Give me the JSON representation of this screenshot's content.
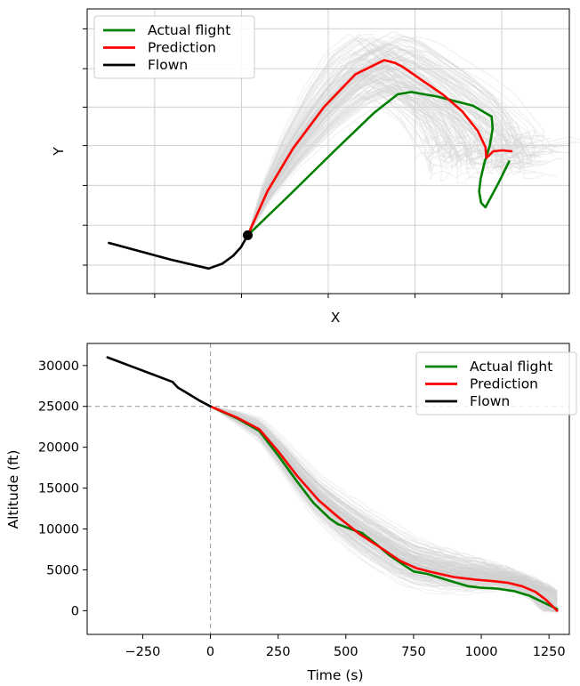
{
  "chart_data": [
    {
      "type": "line",
      "title": "",
      "xlabel": "X",
      "ylabel": "Y",
      "xlim": [
        0,
        100
      ],
      "ylim": [
        0,
        100
      ],
      "x_tick_labels": "none",
      "y_tick_labels": "none",
      "grid": true,
      "legend_placement": "top-left",
      "legend": [
        "Actual flight",
        "Prediction",
        "Flown"
      ],
      "series": [
        {
          "name": "Actual flight",
          "color": "#008000",
          "x": [
            33.3,
            42.2,
            51.2,
            59.5,
            64.4,
            67.2,
            72.7,
            80.0,
            83.9,
            84.1,
            83.5,
            82.4,
            81.6,
            81.3,
            81.7,
            82.6,
            85.2,
            87.5
          ],
          "y": [
            20.5,
            35.0,
            50.0,
            63.5,
            70.0,
            70.8,
            69.2,
            66.0,
            62.2,
            58.0,
            52.0,
            46.0,
            40.3,
            35.9,
            31.9,
            30.3,
            38.5,
            46.4
          ]
        },
        {
          "name": "Prediction",
          "color": "#ff0000",
          "x": [
            33.3,
            37.4,
            42.7,
            49.1,
            55.6,
            61.6,
            63.9,
            65.4,
            69.4,
            73.8,
            77.8,
            81.0,
            82.6,
            82.8,
            83.2,
            84.2,
            86.2,
            88.0
          ],
          "y": [
            20.5,
            36.0,
            51.0,
            65.5,
            77.0,
            82.0,
            81.0,
            79.7,
            75.0,
            69.9,
            64.0,
            57.2,
            51.5,
            47.7,
            48.3,
            50.0,
            50.3,
            50.0
          ]
        },
        {
          "name": "Flown",
          "color": "#000000",
          "x": [
            4.5,
            17.4,
            25.2,
            28.0,
            30.3,
            31.9,
            33.3
          ],
          "y": [
            17.8,
            11.9,
            8.8,
            10.5,
            13.3,
            16.3,
            20.5
          ]
        }
      ],
      "markers": [
        {
          "label": "current position",
          "x": 33.3,
          "y": 20.5,
          "color": "#000000"
        }
      ],
      "background_ensemble": "many grey simulated trajectories"
    },
    {
      "type": "line",
      "title": "",
      "xlabel": "Time (s)",
      "ylabel": "Altitude (ft)",
      "xlim": [
        -455,
        1325
      ],
      "ylim": [
        -2900,
        32700
      ],
      "x_ticks": [
        -250,
        0,
        250,
        500,
        750,
        1000,
        1250
      ],
      "y_ticks": [
        0,
        5000,
        10000,
        15000,
        20000,
        25000,
        30000
      ],
      "x_tick_labels": [
        "−250",
        "0",
        "250",
        "500",
        "750",
        "1000",
        "1250"
      ],
      "y_tick_labels": [
        "0",
        "5000",
        "10000",
        "15000",
        "20000",
        "25000",
        "30000"
      ],
      "grid": false,
      "legend_placement": "top-right",
      "legend": [
        "Actual flight",
        "Prediction",
        "Flown"
      ],
      "reference_lines": [
        {
          "orientation": "horizontal",
          "value": 25000,
          "style": "dashed",
          "color": "#a0a0a0"
        },
        {
          "orientation": "vertical",
          "value": 0,
          "style": "dashed",
          "color": "#a0a0a0"
        }
      ],
      "series": [
        {
          "name": "Actual flight",
          "color": "#008000",
          "x": [
            0,
            100,
            180,
            250,
            320,
            380,
            440,
            470,
            510,
            560,
            610,
            660,
            700,
            750,
            800,
            850,
            900,
            950,
            1000,
            1060,
            1120,
            1180,
            1230,
            1280
          ],
          "y": [
            25000,
            23500,
            22000,
            19000,
            15800,
            13200,
            11300,
            10600,
            10100,
            9500,
            8200,
            6800,
            5900,
            4800,
            4500,
            4000,
            3500,
            3000,
            2800,
            2700,
            2400,
            1800,
            1000,
            200
          ]
        },
        {
          "name": "Prediction",
          "color": "#ff0000",
          "x": [
            0,
            100,
            180,
            250,
            320,
            400,
            470,
            550,
            620,
            700,
            760,
            820,
            900,
            980,
            1050,
            1100,
            1150,
            1200,
            1240,
            1280
          ],
          "y": [
            25000,
            23600,
            22200,
            19500,
            16500,
            13500,
            11500,
            9400,
            7900,
            6100,
            5200,
            4700,
            4100,
            3800,
            3600,
            3400,
            3000,
            2300,
            1300,
            0
          ]
        },
        {
          "name": "Flown",
          "color": "#000000",
          "x": [
            -380,
            -300,
            -220,
            -140,
            -120,
            -80,
            -40,
            0
          ],
          "y": [
            31000,
            30000,
            29000,
            28000,
            27300,
            26500,
            25700,
            25000
          ]
        }
      ],
      "background_ensemble": "many grey simulated trajectories"
    }
  ]
}
